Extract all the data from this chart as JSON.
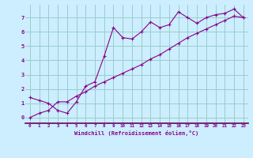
{
  "title": "",
  "xlabel": "Windchill (Refroidissement éolien,°C)",
  "bg_color": "#cceeff",
  "line_color": "#880088",
  "grid_color": "#99cccc",
  "separator_color": "#660066",
  "xlim": [
    -0.5,
    23.5
  ],
  "ylim": [
    -0.4,
    7.9
  ],
  "xticks": [
    0,
    1,
    2,
    3,
    4,
    5,
    6,
    7,
    8,
    9,
    10,
    11,
    12,
    13,
    14,
    15,
    16,
    17,
    18,
    19,
    20,
    21,
    22,
    23
  ],
  "yticks": [
    0,
    1,
    2,
    3,
    4,
    5,
    6,
    7
  ],
  "line1_x": [
    0,
    1,
    2,
    3,
    4,
    5,
    6,
    7,
    8,
    9,
    10,
    11,
    12,
    13,
    14,
    15,
    16,
    17,
    18,
    19,
    20,
    21,
    22,
    23
  ],
  "line1_y": [
    1.4,
    1.2,
    1.0,
    0.5,
    0.3,
    1.1,
    2.2,
    2.5,
    4.3,
    6.3,
    5.6,
    5.5,
    6.0,
    6.7,
    6.3,
    6.5,
    7.4,
    7.0,
    6.6,
    7.0,
    7.2,
    7.3,
    7.6,
    7.0
  ],
  "line2_x": [
    0,
    1,
    2,
    3,
    4,
    5,
    6,
    7,
    8,
    9,
    10,
    11,
    12,
    13,
    14,
    15,
    16,
    17,
    18,
    19,
    20,
    21,
    22,
    23
  ],
  "line2_y": [
    0.0,
    0.3,
    0.5,
    1.1,
    1.1,
    1.5,
    1.8,
    2.2,
    2.5,
    2.8,
    3.1,
    3.4,
    3.7,
    4.1,
    4.4,
    4.8,
    5.2,
    5.6,
    5.9,
    6.2,
    6.5,
    6.8,
    7.1,
    7.0
  ]
}
